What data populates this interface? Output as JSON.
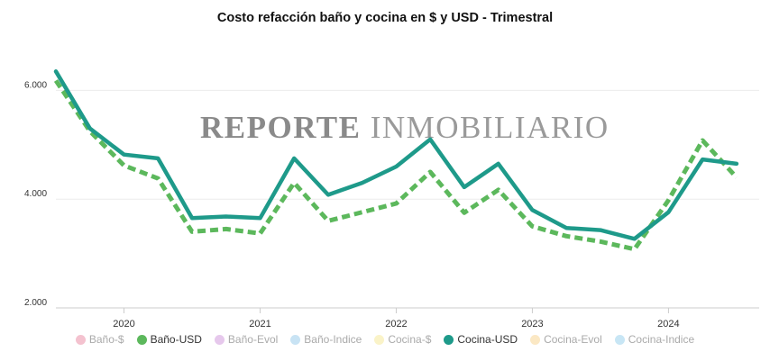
{
  "chart_data": {
    "type": "line",
    "title": "Costo refacción baño y cocina en $ y USD - Trimestral",
    "xlabel": "",
    "ylabel": "",
    "x_ticks": [
      "2020",
      "2021",
      "2022",
      "2023",
      "2024"
    ],
    "y_ticks": [
      "2.000",
      "4.000",
      "6.000"
    ],
    "ylim": [
      2000,
      7000
    ],
    "xlim": [
      2019.5,
      2024.6
    ],
    "x": [
      2019.5,
      2019.75,
      2020.0,
      2020.25,
      2020.5,
      2020.75,
      2021.0,
      2021.25,
      2021.5,
      2021.75,
      2022.0,
      2022.25,
      2022.5,
      2022.75,
      2023.0,
      2023.25,
      2023.5,
      2023.75,
      2024.0,
      2024.25,
      2024.5
    ],
    "series": [
      {
        "name": "Baño-USD",
        "color": "#5cb85c",
        "dashed": true,
        "values": [
          6180,
          5250,
          4620,
          4380,
          3400,
          3450,
          3370,
          4300,
          3600,
          3760,
          3920,
          4500,
          3750,
          4170,
          3500,
          3320,
          3220,
          3080,
          3980,
          5080,
          4400
        ]
      },
      {
        "name": "Cocina-USD",
        "color": "#1e9a8a",
        "dashed": false,
        "values": [
          6350,
          5300,
          4820,
          4750,
          3650,
          3680,
          3650,
          4750,
          4080,
          4300,
          4600,
          5100,
          4220,
          4650,
          3800,
          3470,
          3430,
          3270,
          3760,
          4730,
          4650
        ]
      }
    ],
    "legend_position": "bottom",
    "grid": true
  },
  "watermark": {
    "bold": "REPORTE",
    "light": "INMOBILIARIO"
  },
  "legend": {
    "items": [
      {
        "label": "Baño-$",
        "color": "#f4c2cf",
        "active": false
      },
      {
        "label": "Baño-USD",
        "color": "#5cb85c",
        "active": true
      },
      {
        "label": "Baño-Evol",
        "color": "#e6c8ec",
        "active": false
      },
      {
        "label": "Baño-Indice",
        "color": "#c8e3f4",
        "active": false
      },
      {
        "label": "Cocina-$",
        "color": "#faf3c8",
        "active": false
      },
      {
        "label": "Cocina-USD",
        "color": "#1e9a8a",
        "active": true
      },
      {
        "label": "Cocina-Evol",
        "color": "#fbe8c4",
        "active": false
      },
      {
        "label": "Cocina-Indice",
        "color": "#c8e6f5",
        "active": false
      }
    ]
  }
}
